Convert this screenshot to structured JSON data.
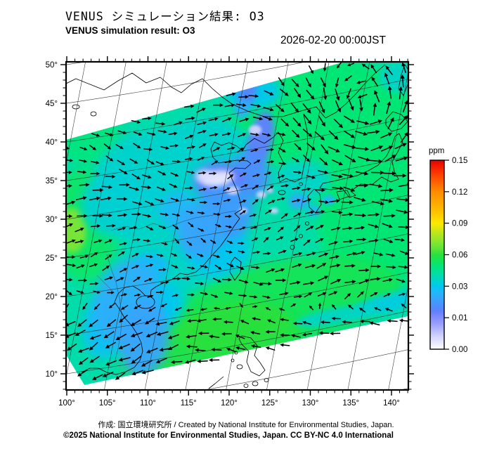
{
  "header": {
    "title_jp": "VENUS シミュレーション結果: O3",
    "title_en": "VENUS simulation result: O3",
    "timestamp": "2026-02-20 00:00JST"
  },
  "footer": {
    "credit_line": "作成: 国立環境研究所 / Created by National Institute for Environmental Studies, Japan.",
    "license_line": "©2025 National Institute for Environmental Studies, Japan. CC BY-NC 4.0 International"
  },
  "chart_data": {
    "type": "heatmap",
    "title": "VENUS simulation result: O3",
    "variable": "O3",
    "unit": "ppm",
    "timestamp": "2026-02-20 00:00JST",
    "axes": {
      "lon_ticks": [
        "100°",
        "105°",
        "110°",
        "115°",
        "120°",
        "125°",
        "130°",
        "135°",
        "140°"
      ],
      "lat_ticks": [
        "50°",
        "45°",
        "40°",
        "35°",
        "30°",
        "25°",
        "20°",
        "15°",
        "10°"
      ],
      "lon_range": [
        100,
        140
      ],
      "lat_range": [
        10,
        50
      ],
      "minor_tick_deg": 1,
      "major_tick_deg": 5
    },
    "colorbar": {
      "label": "ppm",
      "tick_labels": [
        "0.15",
        "0.12",
        "0.09",
        "0.06",
        "0.03",
        "0.01",
        "0.00"
      ],
      "levels_top_to_bottom": [
        0.15,
        0.12,
        0.09,
        0.06,
        0.03,
        0.01,
        0.0
      ],
      "colors_top_to_bottom": [
        "#e60000",
        "#ff8c00",
        "#ffe800",
        "#2ae03c",
        "#00c8f0",
        "#6e78ff",
        "#ffffff"
      ]
    },
    "background_ppm": 0.041,
    "features": [
      {
        "area": "background over most of the domain",
        "ppm": 0.04
      },
      {
        "area": "Sea of Japan / NW Pacific",
        "ppm": 0.05
      },
      {
        "area": "South China Sea band",
        "ppm": 0.057
      },
      {
        "area": "North China Plain cluster (115-120E, 35-40N), near-zero white cores",
        "ppm": 0.004
      },
      {
        "area": "central / eastern China patches (108-122E, 25-40N)",
        "ppm": 0.015
      },
      {
        "area": "Vietnam - Laos band (103-108E, 12-22N)",
        "ppm": 0.024
      },
      {
        "area": "yellow-green spot near west edge (~101E, 29N)",
        "ppm": 0.07
      },
      {
        "area": "blue spot near 122E 47N",
        "ppm": 0.016
      },
      {
        "area": "cyan strip along lower domain boundary (SE)",
        "ppm": 0.032
      }
    ],
    "wind": {
      "symbol": "arrows",
      "features": [
        "wavy west-to-east flow across mid-latitudes",
        "cyclonic vortex near 138E 45N",
        "easterly flow along southern part of domain",
        "southward flow along Vietnam coast"
      ]
    },
    "no_data_regions": [
      "upper-left triangle outside tilted model domain",
      "lower-right area below domain edge (Philippines region)"
    ],
    "patch_format": "[x_px, y_px, rx_px, ry_px, rotate_deg, ppm]",
    "field_patches": [
      [
        460,
        165,
        130,
        85,
        0,
        0.05
      ],
      [
        530,
        295,
        80,
        130,
        0,
        0.05
      ],
      [
        410,
        430,
        160,
        60,
        -10,
        0.055
      ],
      [
        300,
        495,
        130,
        45,
        -12,
        0.058
      ],
      [
        330,
        465,
        80,
        35,
        -10,
        0.06
      ],
      [
        570,
        112,
        30,
        20,
        0,
        0.036
      ],
      [
        550,
        432,
        50,
        13,
        -14,
        0.032
      ],
      [
        480,
        450,
        60,
        12,
        -10,
        0.036
      ],
      [
        120,
        320,
        50,
        80,
        0,
        0.052
      ],
      [
        103,
        328,
        20,
        32,
        0,
        0.07
      ],
      [
        125,
        195,
        45,
        40,
        0,
        0.048
      ],
      [
        230,
        255,
        95,
        70,
        0,
        0.035
      ],
      [
        175,
        290,
        60,
        50,
        0,
        0.034
      ],
      [
        300,
        215,
        70,
        45,
        10,
        0.035
      ],
      [
        255,
        355,
        75,
        55,
        0,
        0.036
      ],
      [
        310,
        355,
        45,
        40,
        0,
        0.03
      ],
      [
        430,
        255,
        40,
        28,
        0,
        0.036
      ],
      [
        360,
        130,
        40,
        26,
        0,
        0.03
      ],
      [
        255,
        300,
        28,
        26,
        0,
        0.026
      ],
      [
        215,
        380,
        24,
        20,
        0,
        0.027
      ],
      [
        230,
        430,
        32,
        30,
        0,
        0.03
      ],
      [
        150,
        465,
        32,
        45,
        10,
        0.028
      ],
      [
        180,
        430,
        45,
        62,
        18,
        0.024
      ],
      [
        205,
        482,
        35,
        55,
        8,
        0.022
      ],
      [
        352,
        128,
        13,
        24,
        12,
        0.016
      ],
      [
        344,
        155,
        11,
        14,
        0,
        0.024
      ],
      [
        370,
        200,
        17,
        42,
        14,
        0.014
      ],
      [
        355,
        250,
        28,
        34,
        0,
        0.018
      ],
      [
        312,
        258,
        36,
        26,
        0,
        0.012
      ],
      [
        322,
        300,
        38,
        42,
        0,
        0.02
      ],
      [
        285,
        330,
        33,
        38,
        0,
        0.022
      ],
      [
        425,
        287,
        14,
        10,
        0,
        0.022
      ],
      [
        447,
        300,
        10,
        8,
        0,
        0.026
      ],
      [
        468,
        285,
        9,
        7,
        0,
        0.026
      ],
      [
        310,
        254,
        23,
        11,
        -8,
        0.002
      ],
      [
        291,
        251,
        13,
        9,
        0,
        0.003
      ],
      [
        331,
        271,
        9,
        6,
        0,
        0.004
      ],
      [
        363,
        185,
        9,
        7,
        0,
        0.004
      ],
      [
        372,
        277,
        7,
        5,
        0,
        0.004
      ],
      [
        384,
        271,
        5,
        4,
        0,
        0.005
      ],
      [
        390,
        300,
        6,
        4,
        0,
        0.004
      ],
      [
        346,
        300,
        6,
        4,
        0,
        0.004
      ]
    ]
  }
}
